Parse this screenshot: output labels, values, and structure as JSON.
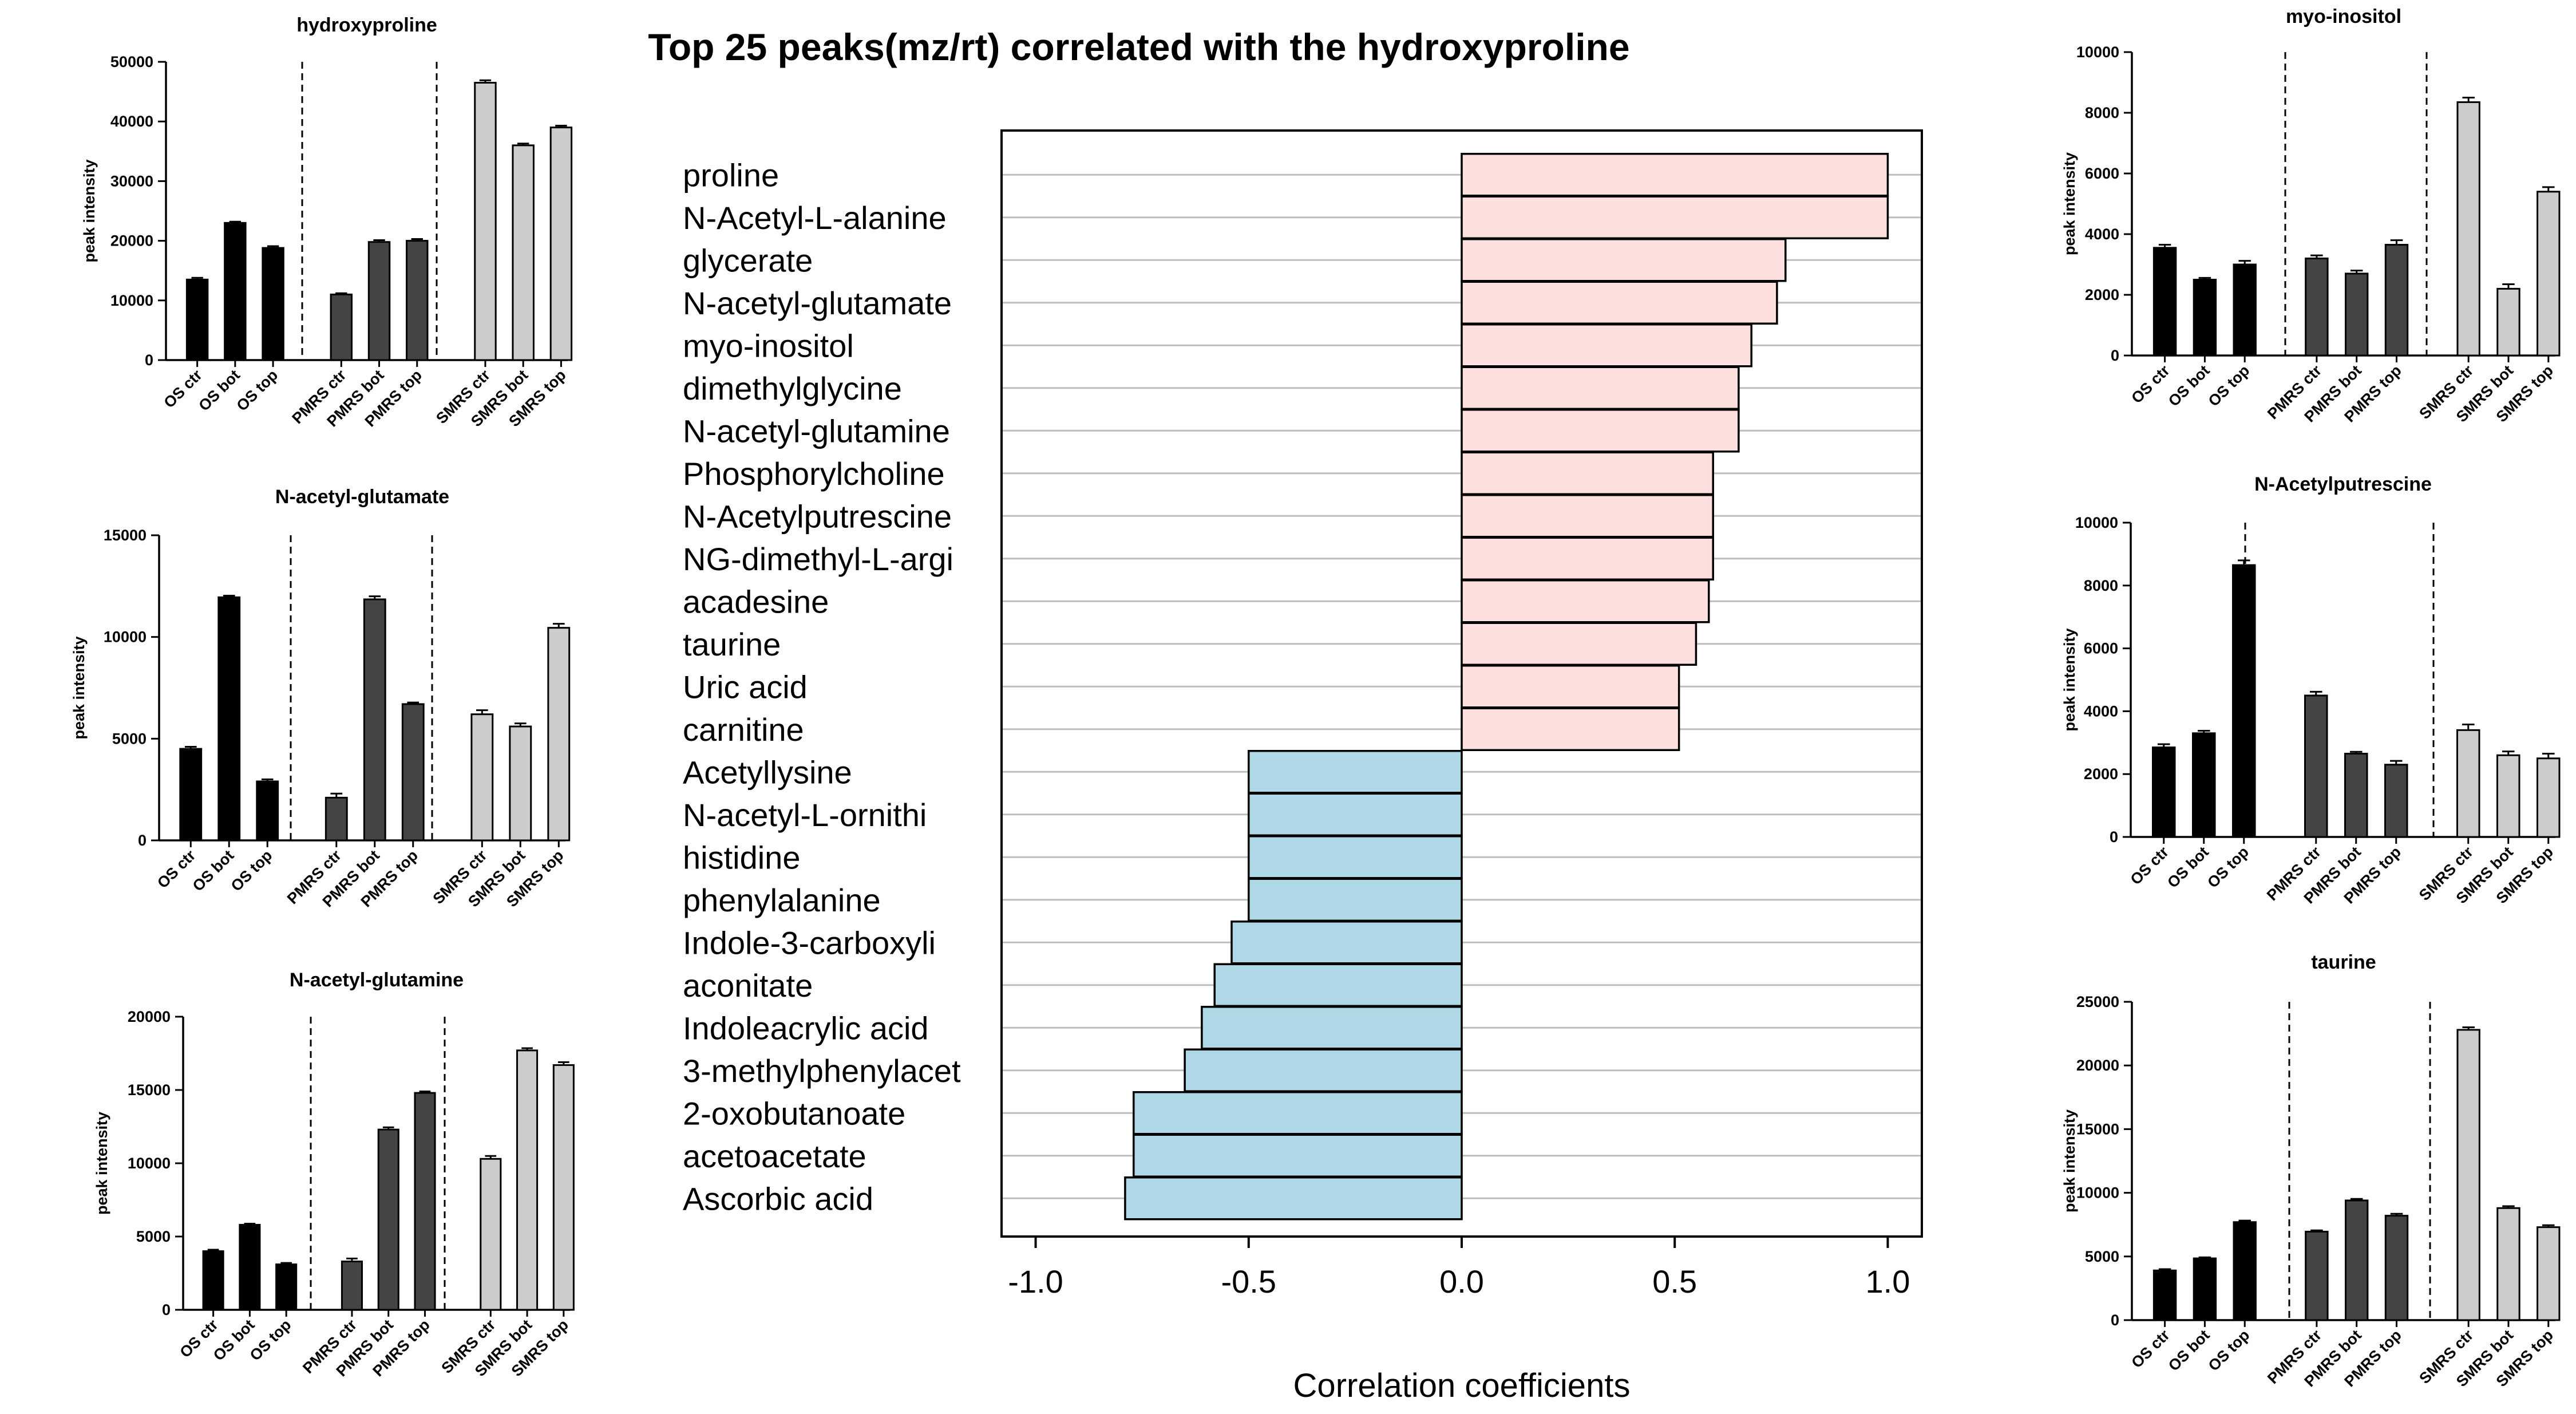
{
  "colors": {
    "positive": "#fde0de",
    "negative": "#aed8e6",
    "os": "#000000",
    "pmrs": "#444444",
    "smrs": "#cccccc",
    "grid": "#bdbdbd",
    "axis": "#000000"
  },
  "chart_data": [
    {
      "id": "main",
      "type": "bar",
      "orientation": "horizontal",
      "title": "Top 25 peaks(mz/rt) correlated with the hydroxyproline",
      "xlabel": "Correlation coefficients",
      "ylabel": "",
      "xlim": [
        -1.08,
        1.08
      ],
      "xticks": [
        -1.0,
        -0.5,
        0.0,
        0.5,
        1.0
      ],
      "xtick_labels": [
        "-1.0",
        "-0.5",
        "0.0",
        "0.5",
        "1.0"
      ],
      "grid": "horizontal",
      "categories": [
        "proline",
        "N-Acetyl-L-alanine",
        "glycerate",
        "N-acetyl-glutamate",
        "myo-inositol",
        "dimethylglycine",
        "N-acetyl-glutamine",
        "Phosphorylcholine",
        "N-Acetylputrescine",
        "NG-dimethyl-L-argi",
        "acadesine",
        "taurine",
        "Uric acid",
        "carnitine",
        "Acetyllysine",
        "N-acetyl-L-ornithi",
        "histidine",
        "phenylalanine",
        "Indole-3-carboxyli",
        "aconitate",
        "Indoleacrylic acid",
        "3-methylphenylacet",
        "2-oxobutanoate",
        "acetoacetate",
        "Ascorbic acid"
      ],
      "values": [
        1.0,
        1.0,
        0.76,
        0.74,
        0.68,
        0.65,
        0.65,
        0.59,
        0.59,
        0.59,
        0.58,
        0.55,
        0.51,
        0.51,
        -0.5,
        -0.5,
        -0.5,
        -0.5,
        -0.54,
        -0.58,
        -0.61,
        -0.65,
        -0.77,
        -0.77,
        -0.79
      ]
    },
    {
      "id": "hydroxyproline",
      "type": "bar",
      "title": "hydroxyproline",
      "ylabel": "peak intensity",
      "ylim": [
        0,
        50000
      ],
      "yticks": [
        0,
        10000,
        20000,
        30000,
        40000,
        50000
      ],
      "categories": [
        "OS ctr",
        "OS bot",
        "OS top",
        "PMRS ctr",
        "PMRS bot",
        "PMRS top",
        "SMRS ctr",
        "SMRS bot",
        "SMRS top"
      ],
      "groups": [
        "OS",
        "OS",
        "OS",
        "PMRS",
        "PMRS",
        "PMRS",
        "SMRS",
        "SMRS",
        "SMRS"
      ],
      "values": [
        13500,
        23000,
        18800,
        11000,
        19800,
        20000,
        46500,
        36000,
        39000
      ],
      "errors": [
        300,
        200,
        300,
        200,
        300,
        300,
        400,
        300,
        300
      ]
    },
    {
      "id": "n-acetyl-glutamate",
      "type": "bar",
      "title": "N-acetyl-glutamate",
      "ylabel": "peak intensity",
      "ylim": [
        0,
        15000
      ],
      "yticks": [
        0,
        5000,
        10000,
        15000
      ],
      "categories": [
        "OS ctr",
        "OS bot",
        "OS top",
        "PMRS ctr",
        "PMRS bot",
        "PMRS top",
        "SMRS ctr",
        "SMRS bot",
        "SMRS top"
      ],
      "groups": [
        "OS",
        "OS",
        "OS",
        "PMRS",
        "PMRS",
        "PMRS",
        "SMRS",
        "SMRS",
        "SMRS"
      ],
      "values": [
        4500,
        11950,
        2900,
        2100,
        11850,
        6700,
        6200,
        5600,
        10450
      ],
      "errors": [
        100,
        80,
        100,
        200,
        150,
        80,
        200,
        150,
        200
      ]
    },
    {
      "id": "n-acetyl-glutamine",
      "type": "bar",
      "title": "N-acetyl-glutamine",
      "ylabel": "peak intensity",
      "ylim": [
        0,
        20000
      ],
      "yticks": [
        0,
        5000,
        10000,
        15000,
        20000
      ],
      "categories": [
        "OS ctr",
        "OS bot",
        "OS top",
        "PMRS ctr",
        "PMRS bot",
        "PMRS top",
        "SMRS ctr",
        "SMRS bot",
        "SMRS top"
      ],
      "groups": [
        "OS",
        "OS",
        "OS",
        "PMRS",
        "PMRS",
        "PMRS",
        "SMRS",
        "SMRS",
        "SMRS"
      ],
      "values": [
        4000,
        5800,
        3100,
        3300,
        12300,
        14800,
        10300,
        17700,
        16700
      ],
      "errors": [
        100,
        80,
        100,
        200,
        150,
        100,
        200,
        150,
        200
      ]
    },
    {
      "id": "myo-inositol",
      "type": "bar",
      "title": "myo-inositol",
      "ylabel": "peak intensity",
      "ylim": [
        0,
        10000
      ],
      "yticks": [
        0,
        2000,
        4000,
        6000,
        8000,
        10000
      ],
      "categories": [
        "OS ctr",
        "OS bot",
        "OS top",
        "PMRS ctr",
        "PMRS bot",
        "PMRS top",
        "SMRS ctr",
        "SMRS bot",
        "SMRS top"
      ],
      "groups": [
        "OS",
        "OS",
        "OS",
        "PMRS",
        "PMRS",
        "PMRS",
        "SMRS",
        "SMRS",
        "SMRS"
      ],
      "values": [
        3550,
        2500,
        3000,
        3200,
        2700,
        3650,
        8350,
        2200,
        5400
      ],
      "errors": [
        100,
        60,
        120,
        100,
        100,
        150,
        150,
        150,
        150
      ]
    },
    {
      "id": "n-acetylputrescine",
      "type": "bar",
      "title": "N-Acetylputrescine",
      "ylabel": "peak intensity",
      "ylim": [
        0,
        10000
      ],
      "yticks": [
        0,
        2000,
        4000,
        6000,
        8000,
        10000
      ],
      "categories": [
        "OS ctr",
        "OS bot",
        "OS top",
        "PMRS ctr",
        "PMRS bot",
        "PMRS top",
        "SMRS ctr",
        "SMRS bot",
        "SMRS top"
      ],
      "groups": [
        "OS",
        "OS",
        "OS",
        "PMRS",
        "PMRS",
        "PMRS",
        "SMRS",
        "SMRS",
        "SMRS"
      ],
      "values": [
        2850,
        3300,
        8650,
        4500,
        2650,
        2300,
        3400,
        2600,
        2500
      ],
      "errors": [
        100,
        80,
        150,
        120,
        60,
        120,
        180,
        120,
        150
      ]
    },
    {
      "id": "taurine",
      "type": "bar",
      "title": "taurine",
      "ylabel": "peak intensity",
      "ylim": [
        0,
        25000
      ],
      "yticks": [
        0,
        5000,
        10000,
        15000,
        20000,
        25000
      ],
      "categories": [
        "OS ctr",
        "OS bot",
        "OS top",
        "PMRS ctr",
        "PMRS bot",
        "PMRS top",
        "SMRS ctr",
        "SMRS bot",
        "SMRS top"
      ],
      "groups": [
        "OS",
        "OS",
        "OS",
        "PMRS",
        "PMRS",
        "PMRS",
        "SMRS",
        "SMRS",
        "SMRS"
      ],
      "values": [
        3900,
        4850,
        7700,
        6950,
        9400,
        8200,
        22800,
        8800,
        7300
      ],
      "errors": [
        100,
        80,
        120,
        100,
        120,
        150,
        200,
        150,
        150
      ]
    }
  ]
}
